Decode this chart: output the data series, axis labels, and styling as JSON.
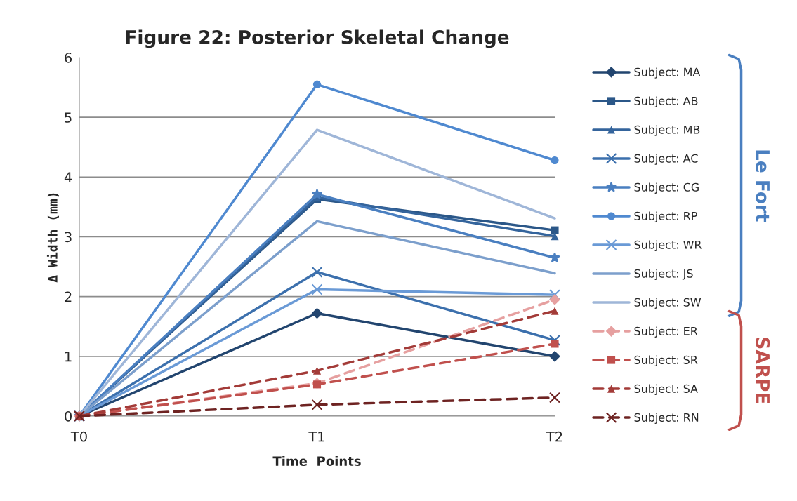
{
  "chart_data": {
    "type": "line",
    "title": "Figure 22: Posterior Skeletal Change",
    "xlabel": "Time  Points",
    "ylabel": "Δ Width (mm)",
    "categories": [
      "T0",
      "T1",
      "T2"
    ],
    "ylim": [
      0,
      6
    ],
    "yticks": [
      0,
      1,
      2,
      3,
      4,
      5,
      6
    ],
    "grid": "y",
    "legend": "right",
    "series": [
      {
        "name": "Subject: MA",
        "color": "#22456f",
        "marker": "diamond",
        "line_style": "solid",
        "values": [
          0,
          1.72,
          1.0
        ]
      },
      {
        "name": "Subject: AB",
        "color": "#2b5788",
        "marker": "square",
        "line_style": "solid",
        "values": [
          0,
          3.63,
          3.11
        ]
      },
      {
        "name": "Subject: MB",
        "color": "#34649c",
        "marker": "triangle",
        "line_style": "solid",
        "values": [
          0,
          3.66,
          3.01
        ]
      },
      {
        "name": "Subject: AC",
        "color": "#3c70ad",
        "marker": "cross",
        "line_style": "solid",
        "values": [
          0,
          2.41,
          1.27
        ]
      },
      {
        "name": "Subject: CG",
        "color": "#4a7fc0",
        "marker": "star",
        "line_style": "solid",
        "values": [
          0,
          3.71,
          2.65
        ]
      },
      {
        "name": "Subject: RP",
        "color": "#4f89d0",
        "marker": "circle",
        "line_style": "solid",
        "values": [
          0,
          5.55,
          4.28
        ]
      },
      {
        "name": "Subject: WR",
        "color": "#6a9ad6",
        "marker": "cross",
        "line_style": "solid",
        "values": [
          0,
          2.12,
          2.03
        ]
      },
      {
        "name": "Subject: JS",
        "color": "#7c9fcc",
        "marker": "none",
        "line_style": "solid",
        "values": [
          0,
          3.26,
          2.39
        ]
      },
      {
        "name": "Subject: SW",
        "color": "#9fb6d8",
        "marker": "none",
        "line_style": "solid",
        "values": [
          0,
          4.79,
          3.31
        ]
      },
      {
        "name": "Subject: ER",
        "color": "#e6a0a0",
        "marker": "diamond",
        "line_style": "dashed",
        "values": [
          0,
          0.55,
          1.95
        ]
      },
      {
        "name": "Subject: SR",
        "color": "#c0504d",
        "marker": "square",
        "line_style": "dashed",
        "values": [
          0,
          0.53,
          1.21
        ]
      },
      {
        "name": "Subject: SA",
        "color": "#a33b38",
        "marker": "triangle",
        "line_style": "dashed",
        "values": [
          0,
          0.76,
          1.76
        ]
      },
      {
        "name": "Subject: RN",
        "color": "#6e2322",
        "marker": "cross",
        "line_style": "dashed",
        "values": [
          0,
          0.19,
          0.31
        ]
      }
    ],
    "annotations": [
      "Le Fort",
      "SARPE"
    ]
  }
}
